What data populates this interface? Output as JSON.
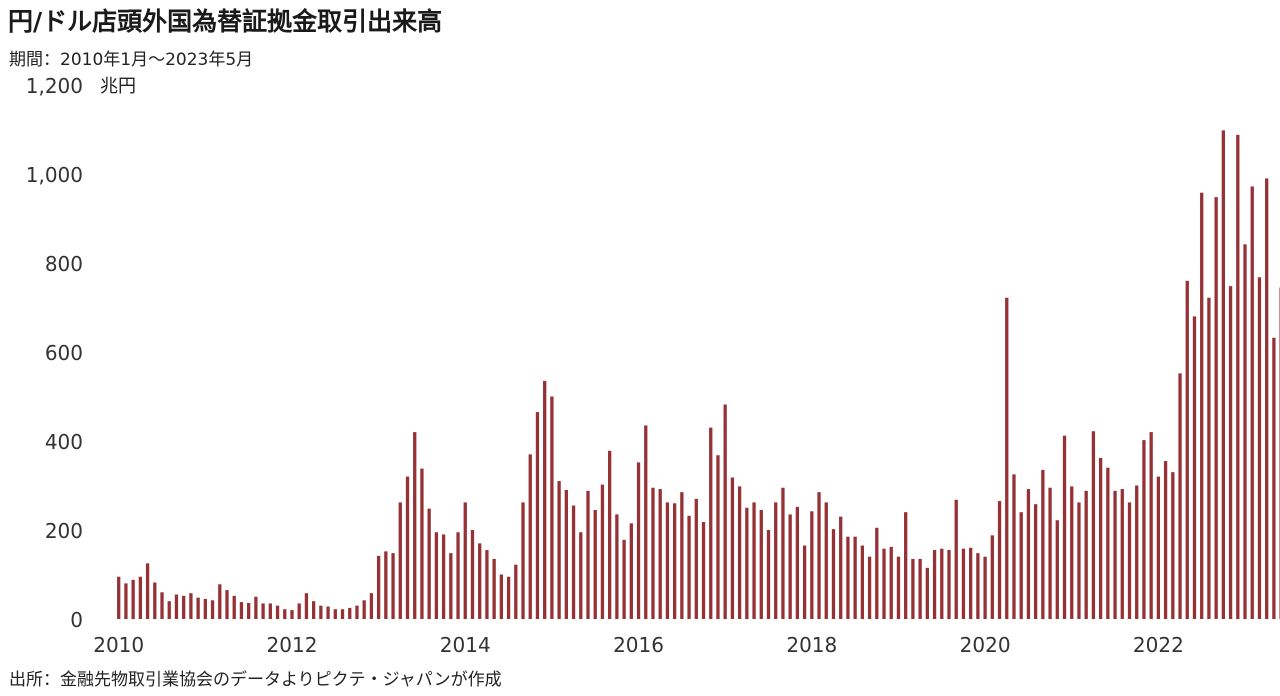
{
  "title": "円/ドル店頭外国為替証拠金取引出来高",
  "subtitle": "期間：2010年1月～2023年5月",
  "source": "出所：金融先物取引業協会のデータよりピクテ・ジャパンが作成",
  "chart_data": {
    "type": "bar",
    "unit_label": "兆円",
    "ylim": [
      0,
      1200
    ],
    "y_ticks": [
      0,
      200,
      400,
      600,
      800,
      1000,
      1200
    ],
    "y_tick_labels": [
      "0",
      "200",
      "400",
      "600",
      "800",
      "1,000",
      "1,200"
    ],
    "x_ticks": [
      "2010",
      "2012",
      "2014",
      "2016",
      "2018",
      "2020",
      "2022"
    ],
    "grid": false,
    "bar_color": "#963236",
    "start": "2010-01",
    "end": "2023-05",
    "values": [
      95,
      80,
      88,
      95,
      125,
      82,
      60,
      40,
      55,
      52,
      58,
      48,
      45,
      42,
      78,
      65,
      52,
      38,
      36,
      50,
      35,
      35,
      30,
      22,
      20,
      35,
      58,
      40,
      30,
      28,
      22,
      22,
      25,
      30,
      42,
      58,
      142,
      152,
      148,
      262,
      320,
      420,
      338,
      248,
      195,
      190,
      148,
      195,
      262,
      200,
      170,
      155,
      135,
      100,
      95,
      122,
      262,
      370,
      465,
      535,
      500,
      310,
      290,
      255,
      195,
      288,
      245,
      302,
      378,
      235,
      178,
      215,
      352,
      435,
      295,
      292,
      262,
      260,
      285,
      232,
      270,
      218,
      430,
      368,
      482,
      318,
      298,
      250,
      262,
      245,
      200,
      262,
      295,
      235,
      252,
      165,
      242,
      285,
      262,
      202,
      230,
      185,
      185,
      165,
      140,
      205,
      158,
      162,
      140,
      240,
      135,
      135,
      115,
      155,
      158,
      155,
      268,
      158,
      160,
      148,
      140,
      188,
      265,
      722,
      325,
      240,
      292,
      258,
      335,
      295,
      222,
      412,
      298,
      262,
      288,
      422,
      362,
      340,
      288,
      292,
      262,
      300,
      402,
      420,
      320,
      355,
      330,
      552,
      760,
      680,
      958,
      722,
      948,
      1098,
      748,
      1088,
      842,
      972,
      768,
      990,
      632,
      745
    ]
  }
}
